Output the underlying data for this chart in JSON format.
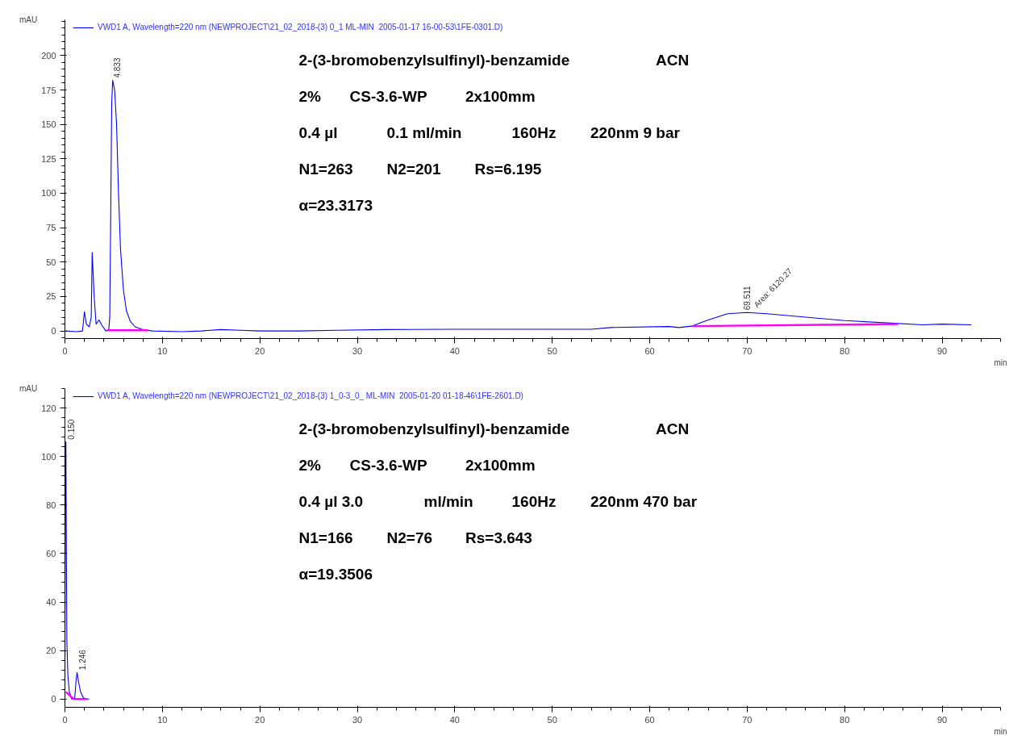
{
  "chart_data": [
    {
      "type": "line",
      "xlabel": "min",
      "ylabel": "mAU",
      "xlim": [
        0,
        96
      ],
      "ylim": [
        -5.5,
        226
      ],
      "xticks": [
        0,
        10,
        20,
        30,
        40,
        50,
        60,
        70,
        80,
        90
      ],
      "yticks": [
        0,
        25,
        50,
        75,
        100,
        125,
        150,
        175,
        200
      ],
      "grid": false,
      "legend": "top left",
      "marker": "none",
      "line_style": "solid",
      "series": [
        {
          "name": "VWD1 A, Wavelength=220 nm (NEWPROJECT\\21_02_2018-(3) 0_1 ML-MIN  2005-01-17 16-00-53\\1FE-0301.D)",
          "color": "#0000ff",
          "x": [
            0,
            1.2,
            1.8,
            2.0,
            2.2,
            2.5,
            2.7,
            2.8,
            3.0,
            3.2,
            3.5,
            3.8,
            4.2,
            4.5,
            4.6,
            4.7,
            4.8,
            4.9,
            5.1,
            5.3,
            5.5,
            5.7,
            6.0,
            6.3,
            6.7,
            7.2,
            8,
            9,
            12,
            14,
            16,
            18,
            20,
            24,
            28,
            33,
            40,
            50,
            54,
            56,
            62,
            63,
            64.3,
            66,
            68,
            70,
            72,
            76,
            80,
            84,
            88,
            90,
            93
          ],
          "values": [
            0,
            -0.5,
            0,
            14,
            5,
            3,
            10,
            57,
            25,
            5,
            8,
            4,
            0,
            1,
            10,
            85,
            165,
            182,
            175,
            150,
            100,
            60,
            30,
            15,
            7,
            3,
            1,
            0,
            -0.5,
            0,
            1,
            0.5,
            0,
            0,
            0.5,
            1,
            1.2,
            1.2,
            1.2,
            2.5,
            3.2,
            2.5,
            3.5,
            8,
            12.5,
            13.4,
            12.5,
            10,
            7.5,
            6,
            4.5,
            5,
            4.5
          ]
        },
        {
          "color": "#ff00ff",
          "x": [
            4.3,
            8.5,
            null,
            64.3,
            85.5
          ],
          "values": [
            0.5,
            0.5,
            null,
            3.5,
            5
          ]
        }
      ],
      "annotations": [
        {
          "text": "4.833",
          "x": 4.833,
          "y": 182
        },
        {
          "text": "69.511",
          "x": 69.511,
          "y": 13.4
        },
        {
          "text": "Area: 6120.27",
          "x": 69.511,
          "y": 13.4
        },
        "2-(3-bromobenzylsulfinyl)-benzamide      ACN",
        "2%  CS-3.6-WP  2x100mm",
        "0.4 µl  0.1 ml/min  160Hz  220nm 9 bar",
        "N1=263       N2=201       Rs=6.195",
        "α=23.3173"
      ]
    },
    {
      "type": "line",
      "xlabel": "min",
      "ylabel": "mAU",
      "xlim": [
        0,
        96
      ],
      "ylim": [
        -3.4,
        128
      ],
      "xticks": [
        0,
        10,
        20,
        30,
        40,
        50,
        60,
        70,
        80,
        90
      ],
      "yticks": [
        0,
        20,
        40,
        60,
        80,
        100,
        120
      ],
      "grid": false,
      "legend": "top left",
      "marker": "none",
      "line_style": "solid",
      "series": [
        {
          "name": "VWD1 A, Wavelength=220 nm (NEWPROJECT\\21_02_2018-(3) 1_0-3_0_ ML-MIN  2005-01-20 01-18-46\\1FE-2601.D)",
          "color": "#0000ff",
          "x": [
            0,
            0.05,
            0.1,
            0.15,
            0.2,
            0.3,
            0.45,
            0.7,
            1.0,
            1.15,
            1.25,
            1.4,
            1.6,
            1.9,
            2.2,
            2.5
          ],
          "values": [
            0,
            105,
            106,
            60,
            24,
            10,
            3,
            0,
            0,
            8,
            11,
            7,
            3,
            0.5,
            0,
            0
          ]
        },
        {
          "color": "#ff00ff",
          "x": [
            0.1,
            0.9,
            null,
            1.0,
            2.3
          ],
          "values": [
            3,
            0,
            null,
            0,
            0
          ]
        }
      ],
      "annotations": [
        {
          "text": "0.150",
          "x": 0.15,
          "y": 106
        },
        {
          "text": "1.246",
          "x": 1.246,
          "y": 11
        },
        "2-(3-bromobenzylsulfinyl)-benzamide      ACN",
        "2%  CS-3.6-WP  2x100mm",
        "0.4 µl 3.0  ml/min  160Hz  220nm 470 bar",
        "N1=166       N2=76       Rs=3.643",
        "α=19.3506"
      ]
    }
  ]
}
